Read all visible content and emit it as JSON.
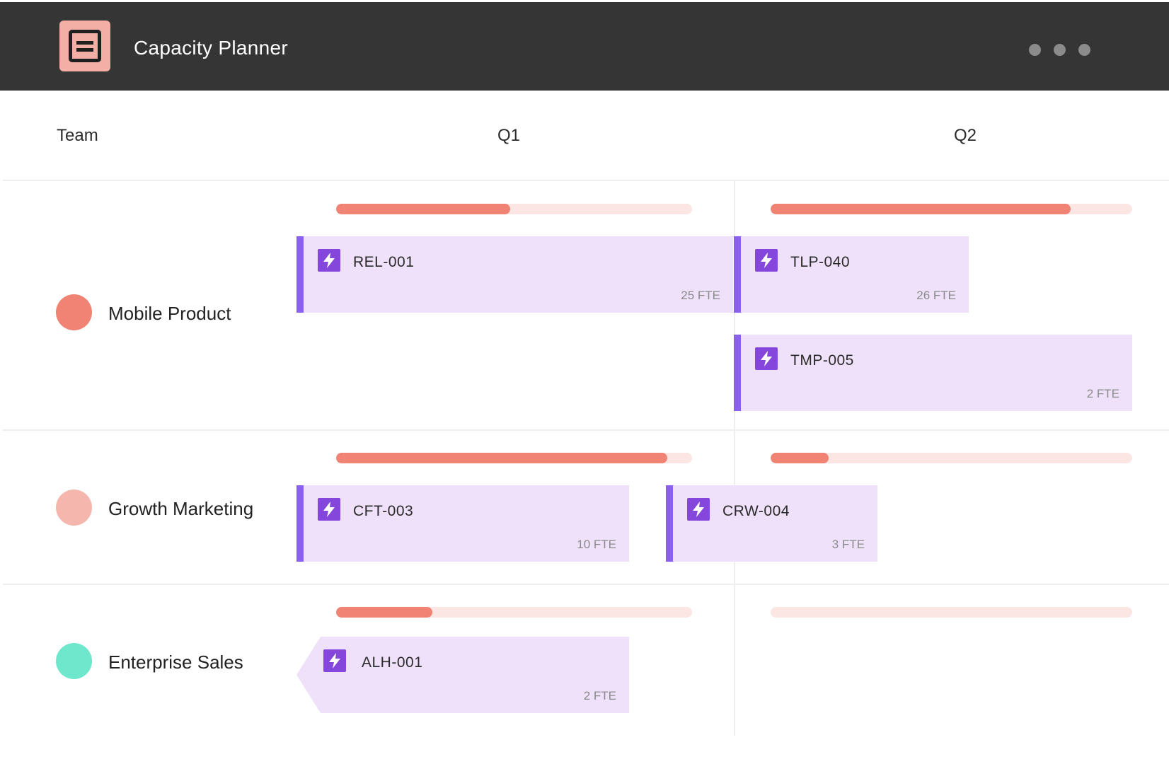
{
  "app": {
    "title": "Capacity Planner"
  },
  "columns": {
    "team": "Team",
    "q1": "Q1",
    "q2": "Q2"
  },
  "teams": [
    {
      "name": "Mobile Product",
      "color": "#f08373",
      "q1_capacity": 0.49,
      "q2_capacity": 0.83,
      "items": [
        {
          "code": "REL-001",
          "fte": "25 FTE"
        },
        {
          "code": "TLP-040",
          "fte": "26 FTE"
        },
        {
          "code": "TMP-005",
          "fte": "2 FTE"
        }
      ]
    },
    {
      "name": "Growth Marketing",
      "color": "#f5b6ae",
      "q1_capacity": 0.93,
      "q2_capacity": 0.16,
      "items": [
        {
          "code": "CFT-003",
          "fte": "10 FTE"
        },
        {
          "code": "CRW-004",
          "fte": "3 FTE"
        }
      ]
    },
    {
      "name": "Enterprise Sales",
      "color": "#6ee7cd",
      "q1_capacity": 0.27,
      "q2_capacity": 0.0,
      "items": [
        {
          "code": "ALH-001",
          "fte": "2 FTE"
        }
      ]
    }
  ],
  "colors": {
    "header_bg": "#353535",
    "logo_bg": "#f3aea6",
    "bar_fill": "#f08373",
    "bar_track": "#fbe6e3",
    "card_bg": "#efe1fa",
    "card_accent": "#8b5ff0",
    "icon_bg": "#8546dc"
  },
  "icons": {
    "logo": "document-icon",
    "menu": "more-dots-icon",
    "item": "lightning-bolt-icon"
  }
}
